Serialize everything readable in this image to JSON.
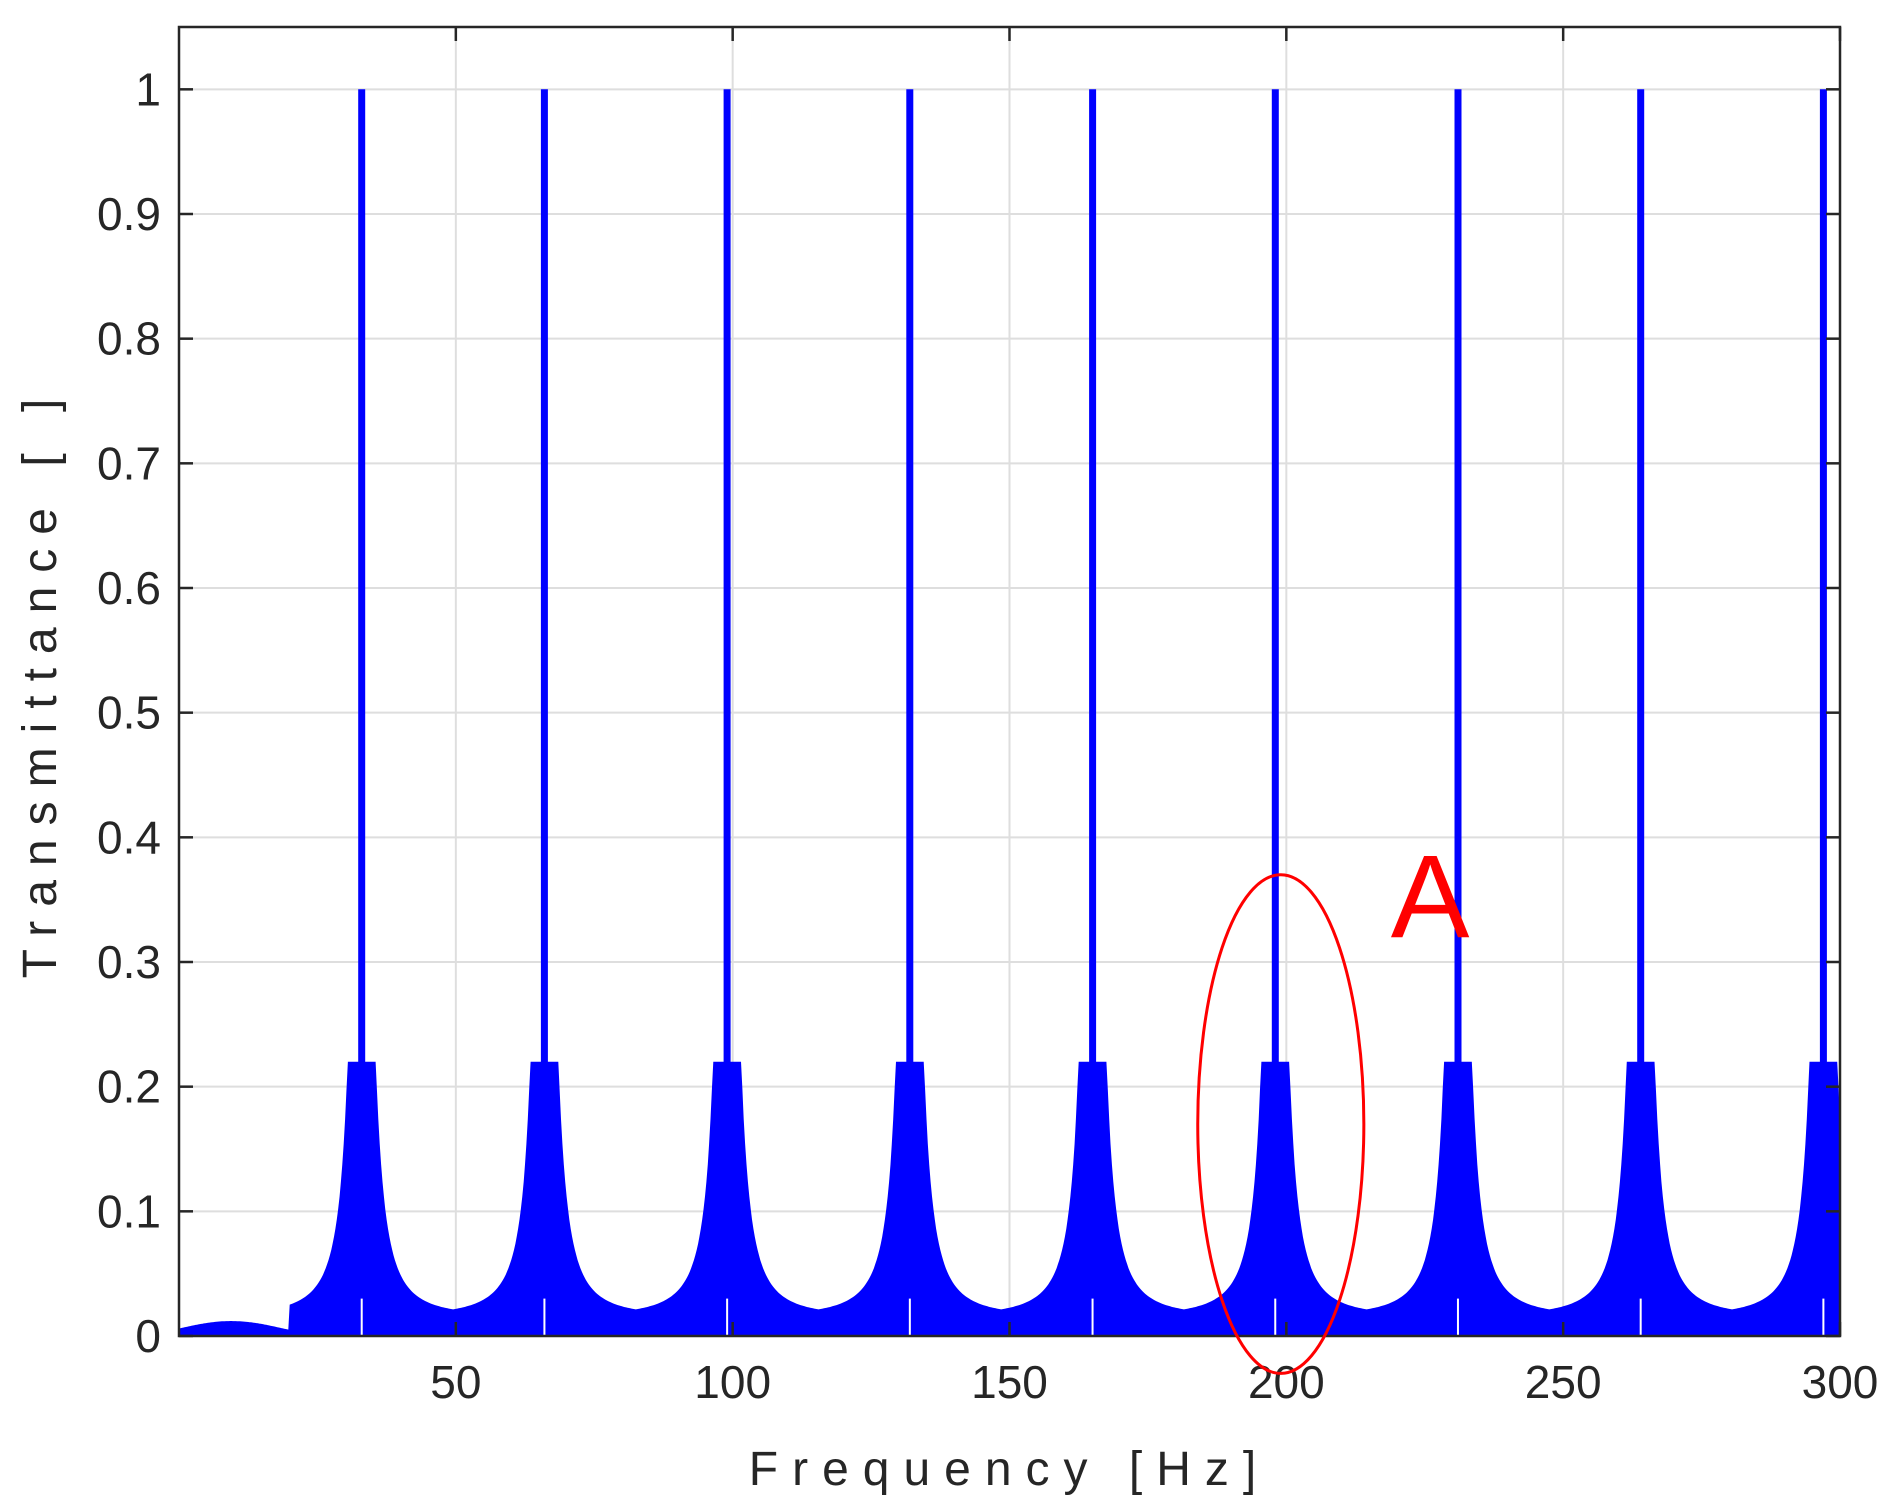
{
  "chart_data": {
    "type": "line",
    "xlabel": "Frequency [Hz]",
    "ylabel": "Transmittance [ ]",
    "xlim": [
      0,
      300
    ],
    "ylim": [
      0,
      1.05
    ],
    "xticks": [
      50,
      100,
      150,
      200,
      250,
      300
    ],
    "xtick_labels": [
      "50",
      "100",
      "150",
      "200",
      "250",
      "300"
    ],
    "yticks": [
      0,
      0.1,
      0.2,
      0.3,
      0.4,
      0.5,
      0.6,
      0.7,
      0.8,
      0.9,
      1
    ],
    "ytick_labels": [
      "0",
      "0.1",
      "0.2",
      "0.3",
      "0.4",
      "0.5",
      "0.6",
      "0.7",
      "0.8",
      "0.9",
      "1"
    ],
    "grid": true,
    "series": [
      {
        "color": "#0000ff",
        "peaks": [
          {
            "x": 33,
            "y": 1
          },
          {
            "x": 66,
            "y": 1
          },
          {
            "x": 99,
            "y": 1
          },
          {
            "x": 132,
            "y": 1
          },
          {
            "x": 165,
            "y": 1
          },
          {
            "x": 198,
            "y": 1
          },
          {
            "x": 231,
            "y": 1
          },
          {
            "x": 264,
            "y": 1
          },
          {
            "x": 297,
            "y": 1
          }
        ],
        "baseline_min": 0.015
      }
    ],
    "annotations": [
      {
        "text": "A",
        "color": "#ff0000",
        "ellipse_center": {
          "x": 199,
          "y": 0.17
        },
        "ellipse_radii": {
          "x": 15,
          "y": 0.2
        }
      }
    ]
  }
}
